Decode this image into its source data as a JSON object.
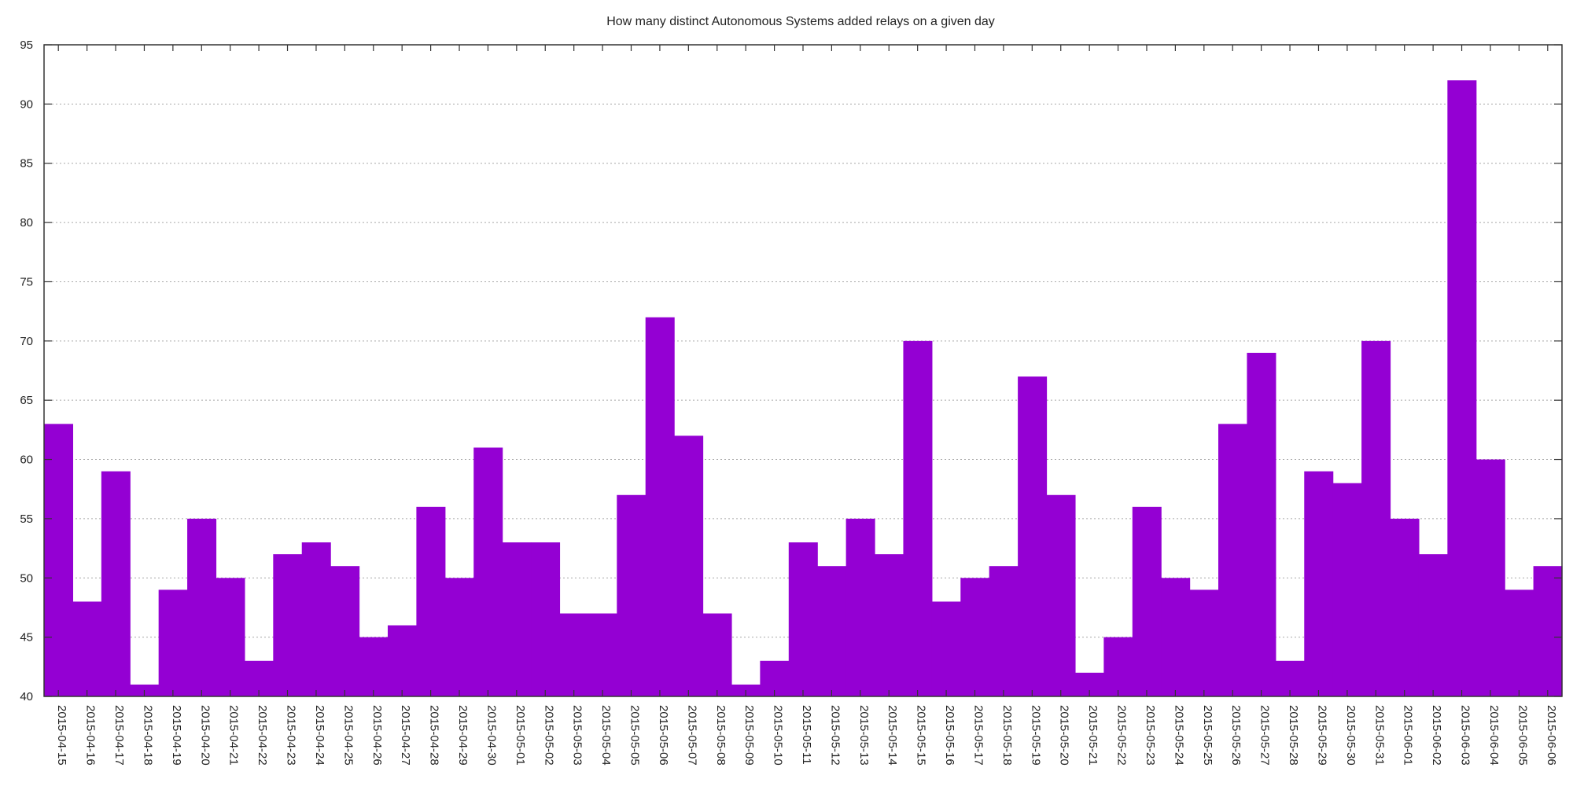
{
  "chart_data": {
    "type": "bar",
    "title": "How many distinct Autonomous Systems added relays on a given day",
    "xlabel": "",
    "ylabel": "",
    "ylim": [
      40,
      95
    ],
    "yticks": [
      40,
      45,
      50,
      55,
      60,
      65,
      70,
      75,
      80,
      85,
      90,
      95
    ],
    "grid": true,
    "bar_color": "#9400d3",
    "categories": [
      "2015-04-15",
      "2015-04-16",
      "2015-04-17",
      "2015-04-18",
      "2015-04-19",
      "2015-04-20",
      "2015-04-21",
      "2015-04-22",
      "2015-04-23",
      "2015-04-24",
      "2015-04-25",
      "2015-04-26",
      "2015-04-27",
      "2015-04-28",
      "2015-04-29",
      "2015-04-30",
      "2015-05-01",
      "2015-05-02",
      "2015-05-03",
      "2015-05-04",
      "2015-05-05",
      "2015-05-06",
      "2015-05-07",
      "2015-05-08",
      "2015-05-09",
      "2015-05-10",
      "2015-05-11",
      "2015-05-12",
      "2015-05-13",
      "2015-05-14",
      "2015-05-15",
      "2015-05-16",
      "2015-05-17",
      "2015-05-18",
      "2015-05-19",
      "2015-05-20",
      "2015-05-21",
      "2015-05-22",
      "2015-05-23",
      "2015-05-24",
      "2015-05-25",
      "2015-05-26",
      "2015-05-27",
      "2015-05-28",
      "2015-05-29",
      "2015-05-30",
      "2015-05-31",
      "2015-06-01",
      "2015-06-02",
      "2015-06-03",
      "2015-06-04",
      "2015-06-05",
      "2015-06-06"
    ],
    "values": [
      63,
      48,
      59,
      41,
      49,
      55,
      50,
      43,
      52,
      53,
      51,
      45,
      46,
      56,
      50,
      61,
      53,
      53,
      47,
      47,
      57,
      72,
      62,
      47,
      41,
      43,
      53,
      51,
      55,
      52,
      70,
      48,
      50,
      51,
      67,
      57,
      42,
      45,
      56,
      50,
      49,
      63,
      69,
      43,
      59,
      58,
      70,
      55,
      52,
      92,
      60,
      49,
      51
    ]
  }
}
